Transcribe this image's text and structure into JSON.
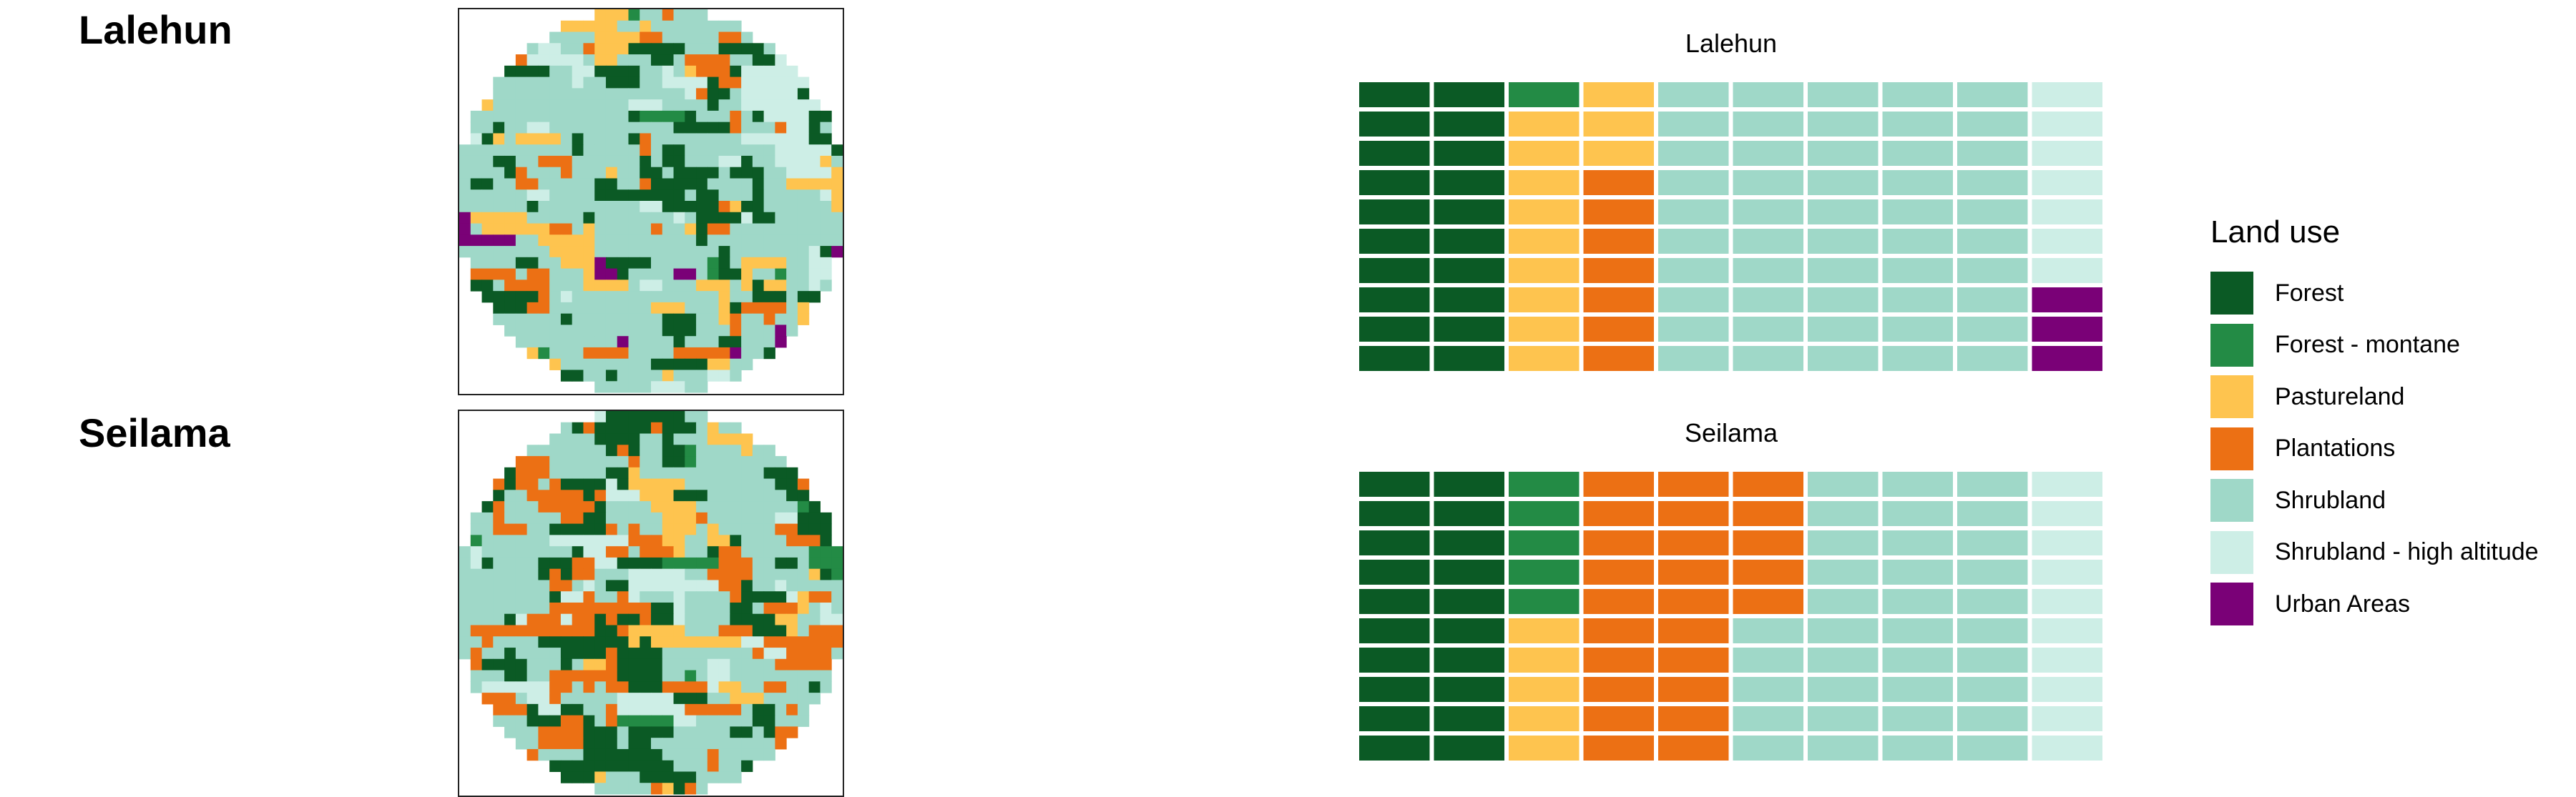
{
  "chart_data": [
    {
      "type": "map",
      "title": "Lalehun",
      "legend_title": "Land use",
      "categories": [
        "Forest",
        "Forest - montane",
        "Pastureland",
        "Plantations",
        "Shrubland",
        "Shrubland - high altitude",
        "Urban Areas"
      ],
      "colors": [
        "#0b5a25",
        "#238b45",
        "#fec44f",
        "#ec7014",
        "#9fd8c8",
        "#cdeee6",
        "#7a0177"
      ]
    },
    {
      "type": "map",
      "title": "Seilama",
      "legend_title": "Land use",
      "categories": [
        "Forest",
        "Forest - montane",
        "Pastureland",
        "Plantations",
        "Shrubland",
        "Shrubland - high altitude",
        "Urban Areas"
      ],
      "colors": [
        "#0b5a25",
        "#238b45",
        "#fec44f",
        "#ec7014",
        "#9fd8c8",
        "#cdeee6",
        "#7a0177"
      ]
    },
    {
      "type": "waffle",
      "title": "Lalehun",
      "total_squares": 100,
      "counts": [
        {
          "category": "Forest",
          "value": 20
        },
        {
          "category": "Forest - montane",
          "value": 1
        },
        {
          "category": "Pastureland",
          "value": 12
        },
        {
          "category": "Plantations",
          "value": 7
        },
        {
          "category": "Shrubland",
          "value": 50
        },
        {
          "category": "Shrubland - high altitude",
          "value": 7
        },
        {
          "category": "Urban Areas",
          "value": 3
        }
      ]
    },
    {
      "type": "waffle",
      "title": "Seilama",
      "total_squares": 100,
      "counts": [
        {
          "category": "Forest",
          "value": 20
        },
        {
          "category": "Forest - montane",
          "value": 5
        },
        {
          "category": "Pastureland",
          "value": 5
        },
        {
          "category": "Plantations",
          "value": 25
        },
        {
          "category": "Shrubland",
          "value": 35
        },
        {
          "category": "Shrubland - high altitude",
          "value": 10
        },
        {
          "category": "Urban Areas",
          "value": 0
        }
      ]
    }
  ],
  "legend": {
    "title": "Land use",
    "items": [
      {
        "label": "Forest",
        "color": "#0b5a25"
      },
      {
        "label": "Forest - montane",
        "color": "#238b45"
      },
      {
        "label": "Pastureland",
        "color": "#fec44f"
      },
      {
        "label": "Plantations",
        "color": "#ec7014"
      },
      {
        "label": "Shrubland",
        "color": "#9fd8c8"
      },
      {
        "label": "Shrubland - high altitude",
        "color": "#cdeee6"
      },
      {
        "label": "Urban Areas",
        "color": "#7a0177"
      }
    ]
  }
}
